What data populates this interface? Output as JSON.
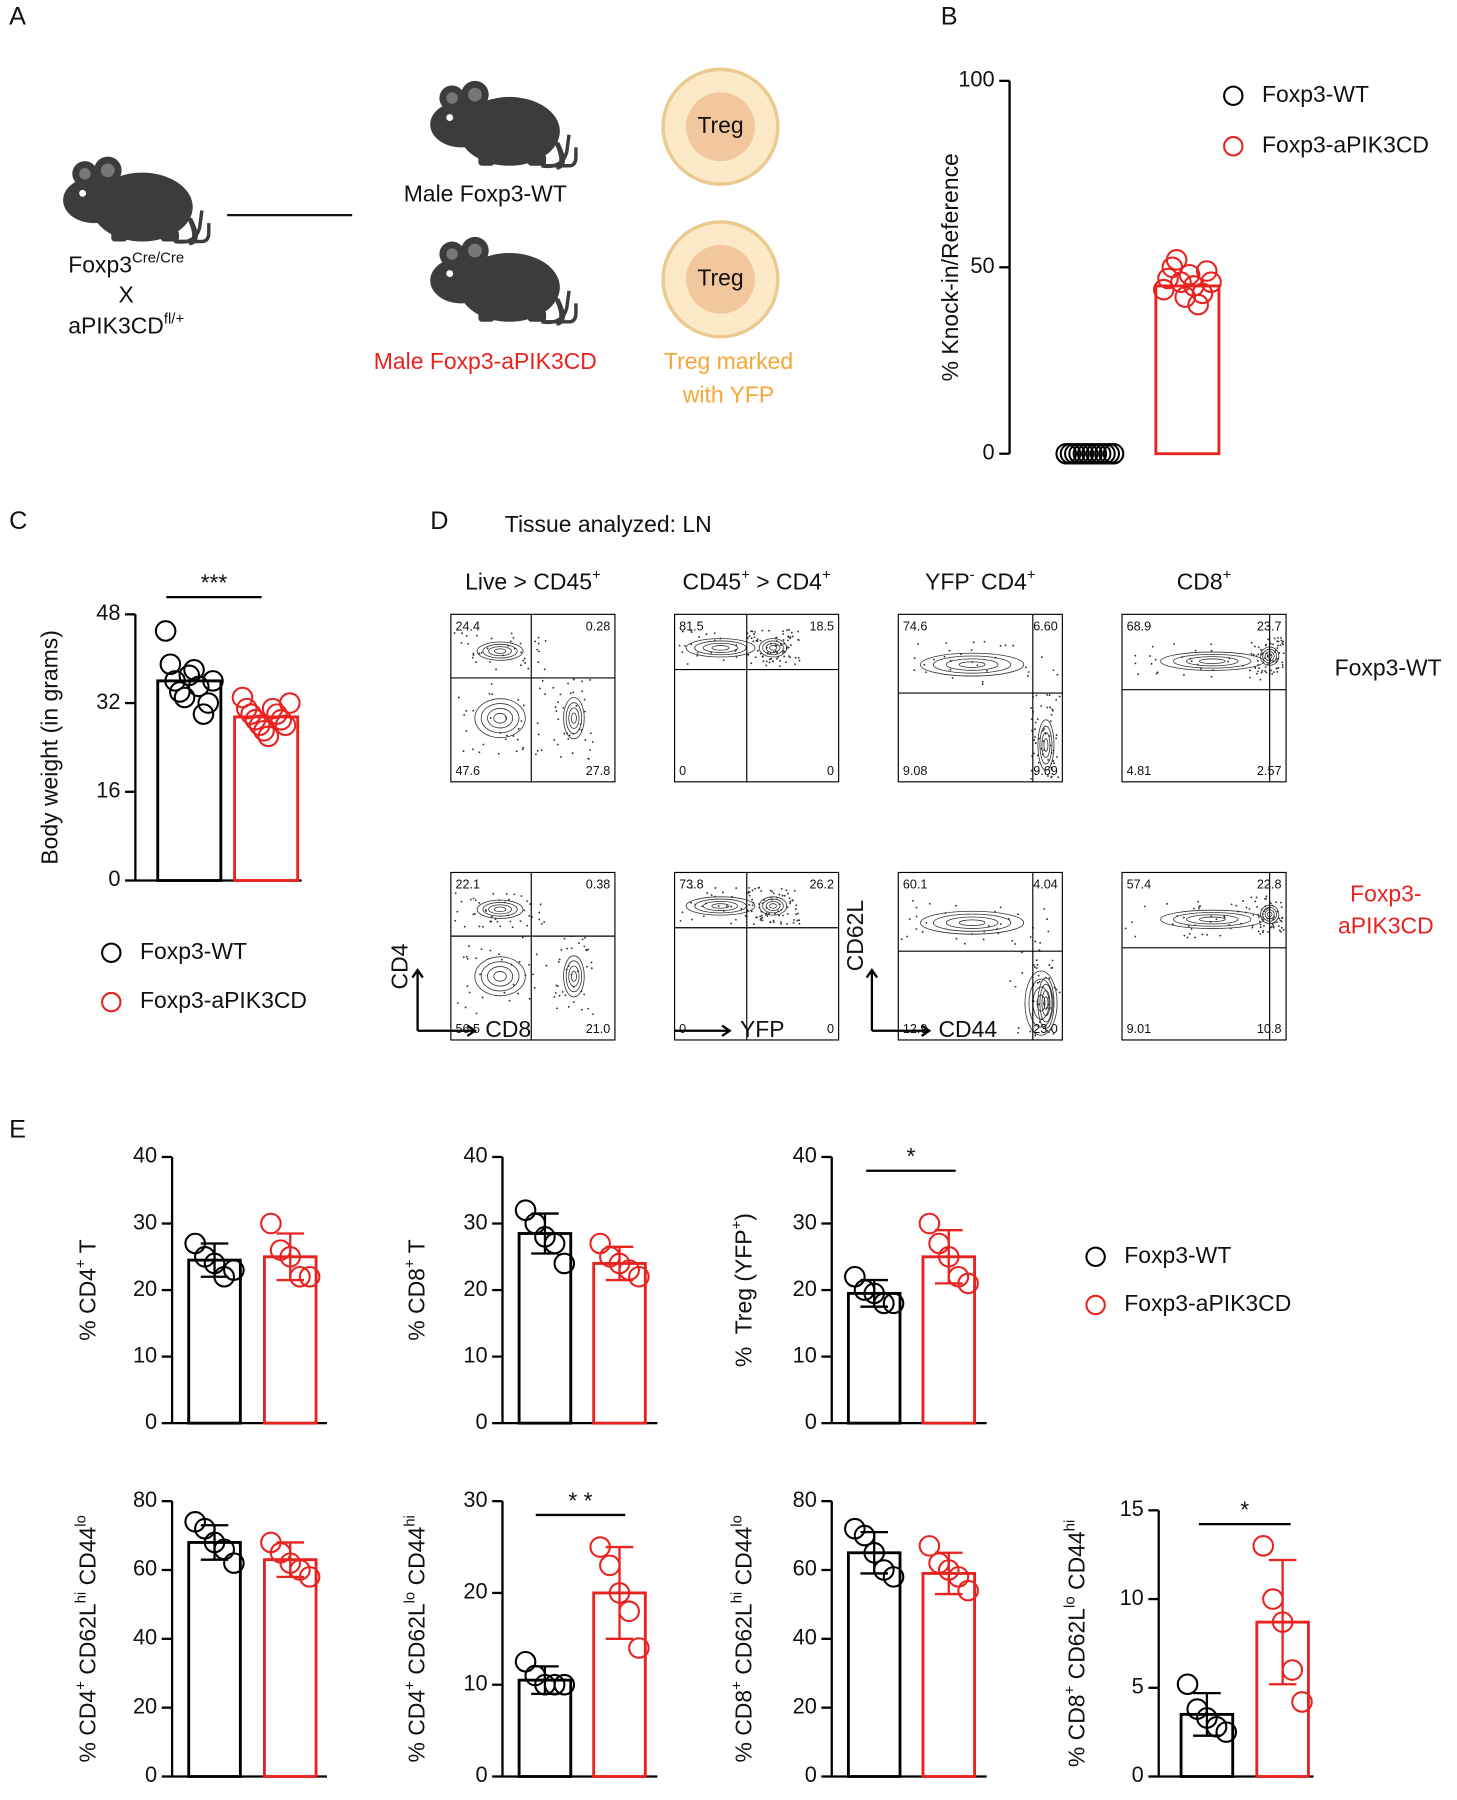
{
  "panel_labels": [
    "A",
    "B",
    "C",
    "D",
    "E"
  ],
  "diagram": {
    "parent_lines": [
      [
        {
          "text": "Foxp3"
        },
        {
          "sup": "Cre/Cre"
        }
      ],
      [
        {
          "text": "X"
        }
      ],
      [
        {
          "text": "aPIK3CD"
        },
        {
          "sup": "fl/+"
        }
      ]
    ],
    "offspring": [
      "Male Foxp3-WT",
      "Male Foxp3-aPIK3CD"
    ],
    "cells": [
      "Treg",
      "Treg"
    ],
    "note": [
      "Treg marked",
      "with YFP"
    ]
  },
  "flow": {
    "tissue": "Tissue analyzed: LN",
    "columns": [
      [
        {
          "text": "Live > CD45"
        },
        {
          "sup": "+"
        }
      ],
      [
        {
          "text": "CD45"
        },
        {
          "sup": "+"
        },
        {
          "text": " > CD4"
        },
        {
          "sup": "+"
        }
      ],
      [
        {
          "text": "YFP"
        },
        {
          "sup": "-"
        },
        {
          "text": " CD4"
        },
        {
          "sup": "+"
        }
      ],
      [
        {
          "text": "CD8"
        },
        {
          "sup": "+"
        }
      ]
    ],
    "rows": [
      [
        "Foxp3-WT"
      ],
      [
        "Foxp3-",
        "aPIK3CD"
      ]
    ],
    "quadrants": [
      [
        [
          "24.4",
          "0.28",
          "47.6",
          "27.8"
        ],
        [
          "81.5",
          "18.5",
          "0",
          "0"
        ],
        [
          "74.6",
          "6.60",
          "9.08",
          "9.69"
        ],
        [
          "68.9",
          "23.7",
          "4.81",
          "2.57"
        ]
      ],
      [
        [
          "22.1",
          "0.38",
          "56.5",
          "21.0"
        ],
        [
          "73.8",
          "26.2",
          "0",
          "0"
        ],
        [
          "60.1",
          "4.04",
          "12.9",
          "23.0"
        ],
        [
          "57.4",
          "22.8",
          "9.01",
          "10.8"
        ]
      ]
    ],
    "axes": [
      "CD4",
      "CD8",
      "YFP",
      "CD62L",
      "CD44"
    ]
  },
  "chart_data": [
    {
      "type": "bar",
      "ylabel": [
        {
          "text": "% Knock-in/Reference"
        }
      ],
      "ylim": [
        0,
        100
      ],
      "yticks": [
        0,
        50,
        100
      ],
      "series": [
        {
          "name": "Foxp3-WT",
          "color": "#000000",
          "values": [
            0
          ],
          "points": [
            0,
            0,
            0,
            0,
            0,
            0,
            0,
            0,
            0,
            0,
            0,
            0
          ]
        },
        {
          "name": "Foxp3-aPIK3CD",
          "color": "#e8221f",
          "values": [
            45
          ],
          "points": [
            44,
            47,
            50,
            52,
            46,
            42,
            48,
            45,
            40,
            43,
            49,
            46
          ]
        }
      ]
    },
    {
      "type": "bar",
      "ylabel": [
        {
          "text": "Body weight (in grams)"
        }
      ],
      "ylim": [
        0,
        48
      ],
      "yticks": [
        0,
        16,
        32,
        48
      ],
      "annotation": "***",
      "series": [
        {
          "name": "Foxp3-WT",
          "color": "#000000",
          "values": [
            36
          ],
          "points": [
            45,
            39,
            36,
            34,
            33,
            37,
            38,
            35,
            30,
            32,
            36
          ]
        },
        {
          "name": "Foxp3-aPIK3CD",
          "color": "#e8221f",
          "values": [
            29.5
          ],
          "points": [
            33,
            31,
            30,
            29,
            28,
            27,
            26,
            31,
            30,
            29,
            28,
            32
          ]
        }
      ]
    },
    {
      "type": "bar",
      "ylabel": [
        {
          "text": "% CD4"
        },
        {
          "sup": "+"
        },
        {
          "text": " T"
        }
      ],
      "ylim": [
        0,
        40
      ],
      "yticks": [
        0,
        10,
        20,
        30,
        40
      ],
      "series": [
        {
          "color": "#000000",
          "values": [
            24.5
          ],
          "error": [
            2.5
          ],
          "points": [
            27,
            25,
            24,
            22,
            23
          ]
        },
        {
          "color": "#e8221f",
          "values": [
            25
          ],
          "error": [
            3.5
          ],
          "points": [
            30,
            26,
            25,
            22,
            22
          ]
        }
      ]
    },
    {
      "type": "bar",
      "ylabel": [
        {
          "text": "% CD8"
        },
        {
          "sup": "+"
        },
        {
          "text": " T"
        }
      ],
      "ylim": [
        0,
        40
      ],
      "yticks": [
        0,
        10,
        20,
        30,
        40
      ],
      "series": [
        {
          "color": "#000000",
          "values": [
            28.5
          ],
          "error": [
            3
          ],
          "points": [
            32,
            30,
            28,
            27,
            24
          ]
        },
        {
          "color": "#e8221f",
          "values": [
            24
          ],
          "error": [
            2.5
          ],
          "points": [
            27,
            25,
            24,
            23,
            22
          ]
        }
      ]
    },
    {
      "type": "bar",
      "ylabel": [
        {
          "text": "%  Treg (YFP"
        },
        {
          "sup": "+"
        },
        {
          "text": ")"
        }
      ],
      "ylim": [
        0,
        40
      ],
      "yticks": [
        0,
        10,
        20,
        30,
        40
      ],
      "annotation": "*",
      "series": [
        {
          "name": "Foxp3-WT",
          "color": "#000000",
          "values": [
            19.5
          ],
          "error": [
            2
          ],
          "points": [
            22,
            20,
            19.5,
            18,
            18
          ]
        },
        {
          "name": "Foxp3-aPIK3CD",
          "color": "#e8221f",
          "values": [
            25
          ],
          "error": [
            4
          ],
          "points": [
            30,
            27,
            25,
            22,
            21
          ]
        }
      ]
    },
    {
      "type": "bar",
      "ylabel": [
        {
          "text": "% CD4"
        },
        {
          "sup": "+"
        },
        {
          "text": " CD62L"
        },
        {
          "sup": "hi"
        },
        {
          "text": " CD44"
        },
        {
          "sup": "lo"
        }
      ],
      "ylim": [
        0,
        80
      ],
      "yticks": [
        0,
        20,
        40,
        60,
        80
      ],
      "series": [
        {
          "color": "#000000",
          "values": [
            68
          ],
          "error": [
            5
          ],
          "points": [
            74,
            72,
            68,
            66,
            62
          ]
        },
        {
          "color": "#e8221f",
          "values": [
            63
          ],
          "error": [
            5
          ],
          "points": [
            68,
            65,
            62,
            60,
            58
          ]
        }
      ]
    },
    {
      "type": "bar",
      "ylabel": [
        {
          "text": "% CD4"
        },
        {
          "sup": "+"
        },
        {
          "text": " CD62L"
        },
        {
          "sup": "lo"
        },
        {
          "text": " CD44"
        },
        {
          "sup": "hi"
        }
      ],
      "ylim": [
        0,
        30
      ],
      "yticks": [
        0,
        10,
        20,
        30
      ],
      "annotation": "* *",
      "series": [
        {
          "color": "#000000",
          "values": [
            10.5
          ],
          "error": [
            1.5
          ],
          "points": [
            12.5,
            11,
            10,
            10,
            10
          ]
        },
        {
          "color": "#e8221f",
          "values": [
            20
          ],
          "error": [
            5
          ],
          "points": [
            25,
            23,
            20,
            18,
            14
          ]
        }
      ]
    },
    {
      "type": "bar",
      "ylabel": [
        {
          "text": "% CD8"
        },
        {
          "sup": "+"
        },
        {
          "text": " CD62L"
        },
        {
          "sup": "hi"
        },
        {
          "text": " CD44"
        },
        {
          "sup": "lo"
        }
      ],
      "ylim": [
        0,
        80
      ],
      "yticks": [
        0,
        20,
        40,
        60,
        80
      ],
      "series": [
        {
          "color": "#000000",
          "values": [
            65
          ],
          "error": [
            6
          ],
          "points": [
            72,
            70,
            65,
            60,
            58
          ]
        },
        {
          "color": "#e8221f",
          "values": [
            59
          ],
          "error": [
            6
          ],
          "points": [
            67,
            62,
            60,
            58,
            54
          ]
        }
      ]
    },
    {
      "type": "bar",
      "ylabel": [
        {
          "text": "% CD8"
        },
        {
          "sup": "+"
        },
        {
          "text": " CD62L"
        },
        {
          "sup": "lo"
        },
        {
          "text": " CD44"
        },
        {
          "sup": "hi"
        }
      ],
      "ylim": [
        0,
        15
      ],
      "yticks": [
        0,
        5,
        10,
        15
      ],
      "annotation": "*",
      "series": [
        {
          "color": "#000000",
          "values": [
            3.5
          ],
          "error": [
            1.2
          ],
          "points": [
            5.2,
            3.8,
            3.3,
            2.8,
            2.5
          ]
        },
        {
          "color": "#e8221f",
          "values": [
            8.7
          ],
          "error": [
            3.5
          ],
          "points": [
            13,
            10,
            8.7,
            6,
            4.2
          ]
        }
      ]
    }
  ]
}
